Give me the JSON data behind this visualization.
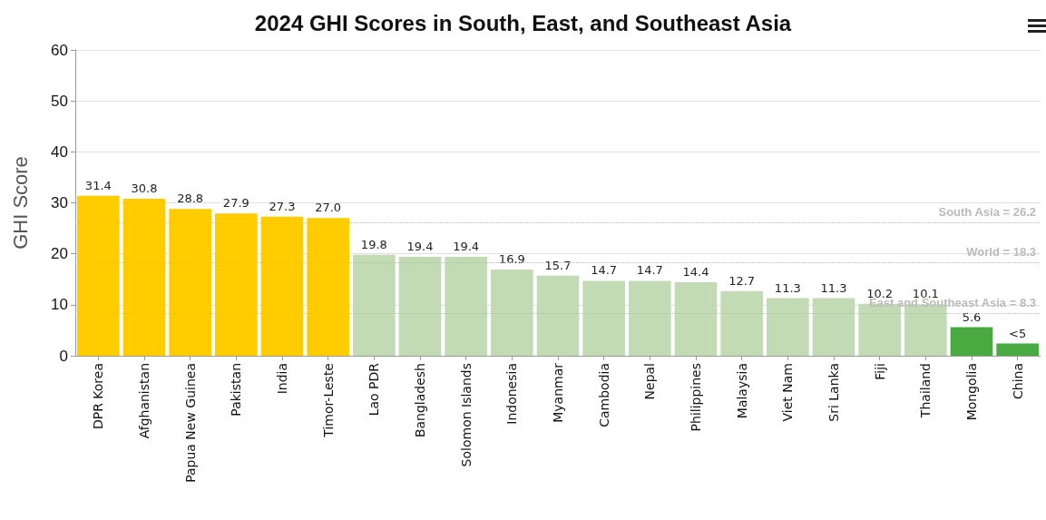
{
  "chart_data": {
    "type": "bar",
    "title": "2024 GHI Scores in South, East, and Southeast Asia",
    "ylabel": "GHI Score",
    "categories": [
      "DPR Korea",
      "Afghanistan",
      "Papua New Guinea",
      "Pakistan",
      "India",
      "Timor-Leste",
      "Lao PDR",
      "Bangladesh",
      "Solomon Islands",
      "Indonesia",
      "Myanmar",
      "Cambodia",
      "Nepal",
      "Philippines",
      "Malaysia",
      "Viet Nam",
      "Sri Lanka",
      "Fiji",
      "Thailand",
      "Mongolia",
      "China"
    ],
    "values": [
      31.4,
      30.8,
      28.8,
      27.9,
      27.3,
      27.0,
      19.8,
      19.4,
      19.4,
      16.9,
      15.7,
      14.7,
      14.7,
      14.4,
      12.7,
      11.3,
      11.3,
      10.2,
      10.1,
      5.6,
      2.4
    ],
    "value_labels": [
      "31.4",
      "30.8",
      "28.8",
      "27.9",
      "27.3",
      "27.0",
      "19.8",
      "19.4",
      "19.4",
      "16.9",
      "15.7",
      "14.7",
      "14.7",
      "14.4",
      "12.7",
      "11.3",
      "11.3",
      "10.2",
      "10.1",
      "5.6",
      "<5"
    ],
    "colors": [
      "#ffcc00",
      "#ffcc00",
      "#ffcc00",
      "#ffcc00",
      "#ffcc00",
      "#ffcc00",
      "#c2dbb5",
      "#c2dbb5",
      "#c2dbb5",
      "#c2dbb5",
      "#c2dbb5",
      "#c2dbb5",
      "#c2dbb5",
      "#c2dbb5",
      "#c2dbb5",
      "#c2dbb5",
      "#c2dbb5",
      "#c2dbb5",
      "#c2dbb5",
      "#4aaa42",
      "#4aaa42"
    ],
    "ylim": [
      0,
      60
    ],
    "yticks": [
      0,
      10,
      20,
      30,
      40,
      50,
      60
    ],
    "grid": "y",
    "ref_lines": [
      {
        "axis": "y",
        "value": 26.2,
        "label": "South Asia = 26.2",
        "color": "#bbbbbb",
        "line_style": "dotted"
      },
      {
        "axis": "y",
        "value": 18.3,
        "label": "World = 18.3",
        "color": "#bbbbbb",
        "line_style": "dotted"
      },
      {
        "axis": "y",
        "value": 8.3,
        "label": "East and Southeast Asia = 8.3",
        "color": "#bbbbbb",
        "line_style": "dotted"
      }
    ]
  }
}
